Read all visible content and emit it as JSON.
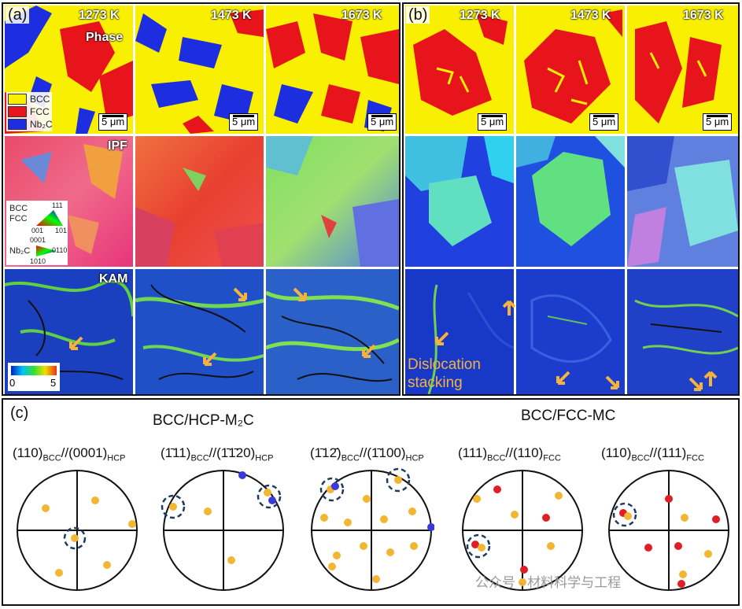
{
  "panel_a": {
    "label": "(a)",
    "temperatures": [
      "1273 K",
      "1473 K",
      "1673 K"
    ],
    "row_labels": {
      "phase": "Phase",
      "ipf": "IPF",
      "kam": "KAM"
    },
    "scale_bar": "5 μm",
    "phase_legend": [
      {
        "name": "BCC",
        "color": "#f8f000"
      },
      {
        "name": "FCC",
        "color": "#e8141c"
      },
      {
        "name": "Nb₂C",
        "color": "#1c2ee0"
      }
    ],
    "ipf_key": {
      "bcc": "BCC",
      "fcc": "FCC",
      "hkl_111": "111",
      "hkl_001": "001",
      "hkl_101": "101",
      "nb2c": "Nb₂C",
      "hkl_0001": "0001",
      "hkl_0110": "0110",
      "hkl_1010": "1010"
    },
    "kam_scale": {
      "min": "0",
      "max": "5"
    }
  },
  "panel_b": {
    "label": "(b)",
    "temperatures": [
      "1273 K",
      "1473 K",
      "1673 K"
    ],
    "scale_bar": "5 μm",
    "annotation_line1": "Dislocation",
    "annotation_line2": "stacking"
  },
  "panel_c": {
    "label": "(c)",
    "group_hcp": "BCC/HCP-M₂C",
    "group_fcc": "BCC/FCC-MC",
    "projections": [
      {
        "a": "(110)",
        "as": "BCC",
        "b": "//(0001)",
        "bs": "HCP"
      },
      {
        "a": "(1̄11)",
        "as": "BCC",
        "b": "//(1̄1̄20)",
        "bs": "HCP"
      },
      {
        "a": "(1̄12̄)",
        "as": "BCC",
        "b": "//(1̄100)",
        "bs": "HCP"
      },
      {
        "a": "(111)",
        "as": "BCC",
        "b": "//(110)",
        "bs": "FCC"
      },
      {
        "a": "(110)",
        "as": "BCC",
        "b": "//(111)",
        "bs": "FCC"
      }
    ],
    "pole_colors": {
      "bcc": "#f2b632",
      "hcp": "#3a3ad8",
      "fcc": "#e01e26"
    }
  },
  "watermark": "公众号 · 材料科学与工程"
}
